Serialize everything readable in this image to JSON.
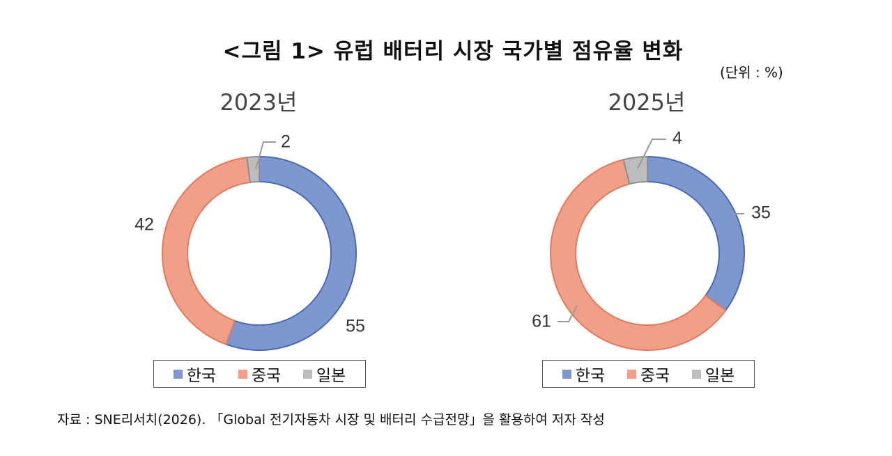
{
  "title": "<그림 1> 유럽 배터리 시장 국가별 점유율 변화",
  "unit_note": "(단위 : %)",
  "colors": {
    "korea": "#7f97cf",
    "china": "#f0a088",
    "japan": "#bdbdbd"
  },
  "chart_data": [
    {
      "type": "pie",
      "title": "2023년",
      "categories": [
        "한국",
        "중국",
        "일본"
      ],
      "values": [
        55,
        42,
        2
      ],
      "labels": [
        "55",
        "42",
        "2"
      ],
      "legend": [
        "한국",
        "중국",
        "일본"
      ],
      "legend_position": "bottom"
    },
    {
      "type": "pie",
      "title": "2025년",
      "categories": [
        "한국",
        "중국",
        "일본"
      ],
      "values": [
        35,
        61,
        4
      ],
      "labels": [
        "35",
        "61",
        "4"
      ],
      "legend": [
        "한국",
        "중국",
        "일본"
      ],
      "legend_position": "bottom"
    }
  ],
  "source": "자료 : SNE리서치(2026). 「Global 전기자동차 시장 및 배터리 수급전망」을 활용하여 저자 작성"
}
